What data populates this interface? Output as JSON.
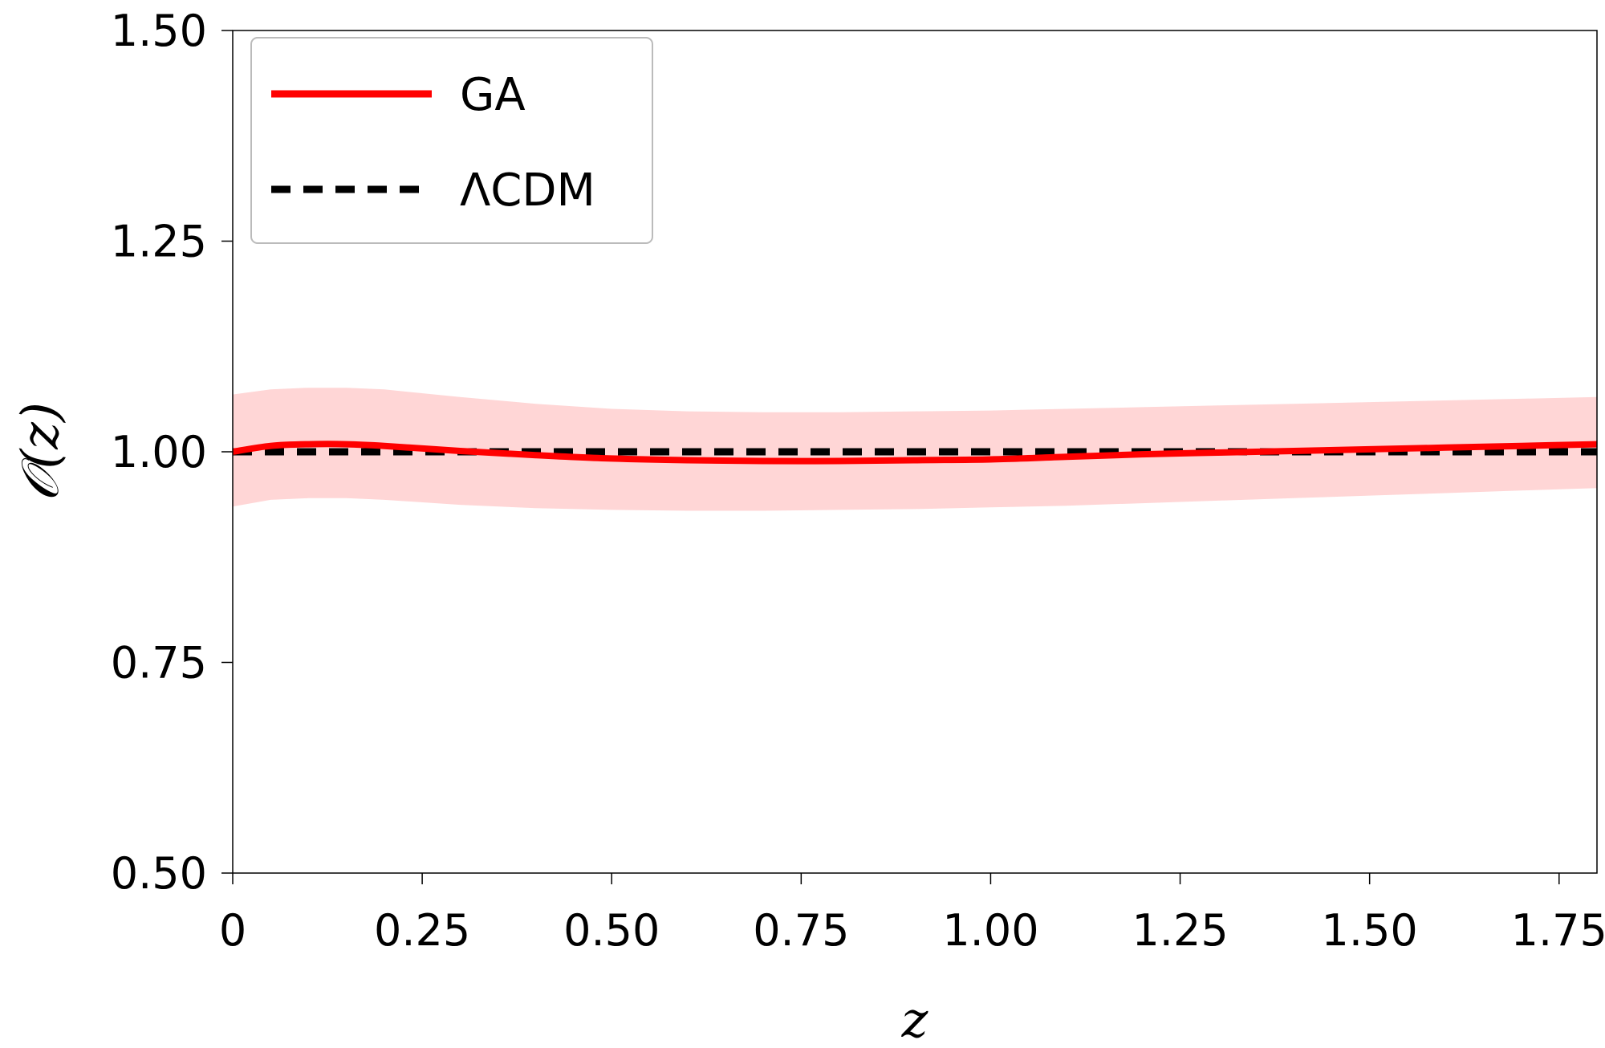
{
  "chart_data": {
    "type": "line",
    "title": "",
    "xlabel": "z",
    "ylabel": "𝒪(z)",
    "xlim": [
      0,
      1.8
    ],
    "ylim": [
      0.5,
      1.5
    ],
    "xticks": [
      0,
      0.25,
      0.5,
      0.75,
      1.0,
      1.25,
      1.5,
      1.75
    ],
    "xtick_labels": [
      "0",
      "0.25",
      "0.50",
      "0.75",
      "1.00",
      "1.25",
      "1.50",
      "1.75"
    ],
    "yticks": [
      0.5,
      0.75,
      1.0,
      1.25,
      1.5
    ],
    "ytick_labels": [
      "0.50",
      "0.75",
      "1.00",
      "1.25",
      "1.50"
    ],
    "grid": false,
    "legend_position": "top-left",
    "series": [
      {
        "name": "GA",
        "style": "solid",
        "color": "#ff0000",
        "x": [
          0,
          0.05,
          0.1,
          0.15,
          0.2,
          0.3,
          0.4,
          0.5,
          0.6,
          0.7,
          0.8,
          0.9,
          1.0,
          1.1,
          1.2,
          1.3,
          1.4,
          1.5,
          1.6,
          1.7,
          1.8
        ],
        "y": [
          1.0,
          1.007,
          1.009,
          1.009,
          1.007,
          1.001,
          0.996,
          0.992,
          0.99,
          0.989,
          0.989,
          0.99,
          0.991,
          0.994,
          0.997,
          0.999,
          1.001,
          1.003,
          1.005,
          1.007,
          1.009
        ]
      },
      {
        "name": "ΛCDM",
        "style": "dashed",
        "color": "#000000",
        "x": [
          0,
          1.8
        ],
        "y": [
          1.0,
          1.0
        ]
      }
    ],
    "band": {
      "series": "GA",
      "color": "#ffd6d6",
      "x": [
        0,
        0.05,
        0.1,
        0.15,
        0.2,
        0.3,
        0.4,
        0.5,
        0.6,
        0.7,
        0.8,
        0.9,
        1.0,
        1.1,
        1.2,
        1.3,
        1.4,
        1.5,
        1.6,
        1.7,
        1.8
      ],
      "upper": [
        1.068,
        1.074,
        1.076,
        1.076,
        1.074,
        1.065,
        1.057,
        1.051,
        1.048,
        1.047,
        1.047,
        1.048,
        1.049,
        1.051,
        1.053,
        1.055,
        1.057,
        1.059,
        1.061,
        1.063,
        1.065
      ],
      "lower": [
        0.935,
        0.943,
        0.945,
        0.945,
        0.943,
        0.937,
        0.933,
        0.931,
        0.93,
        0.93,
        0.931,
        0.932,
        0.934,
        0.936,
        0.939,
        0.942,
        0.945,
        0.948,
        0.951,
        0.954,
        0.957
      ]
    }
  }
}
